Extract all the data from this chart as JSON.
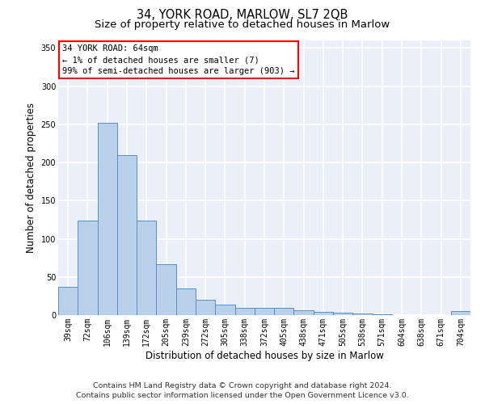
{
  "title_line1": "34, YORK ROAD, MARLOW, SL7 2QB",
  "title_line2": "Size of property relative to detached houses in Marlow",
  "xlabel": "Distribution of detached houses by size in Marlow",
  "ylabel": "Number of detached properties",
  "bar_labels": [
    "39sqm",
    "72sqm",
    "106sqm",
    "139sqm",
    "172sqm",
    "205sqm",
    "239sqm",
    "272sqm",
    "305sqm",
    "338sqm",
    "372sqm",
    "405sqm",
    "438sqm",
    "471sqm",
    "505sqm",
    "538sqm",
    "571sqm",
    "604sqm",
    "638sqm",
    "671sqm",
    "704sqm"
  ],
  "bar_values": [
    37,
    124,
    252,
    210,
    124,
    67,
    35,
    20,
    14,
    10,
    10,
    10,
    6,
    4,
    3,
    2,
    1,
    0,
    0,
    0,
    5
  ],
  "bar_color": "#b8d0ea",
  "bar_edge_color": "#5a8fc2",
  "ylim": [
    0,
    360
  ],
  "yticks": [
    0,
    50,
    100,
    150,
    200,
    250,
    300,
    350
  ],
  "annotation_box_text": "34 YORK ROAD: 64sqm\n← 1% of detached houses are smaller (7)\n99% of semi-detached houses are larger (903) →",
  "footer_line1": "Contains HM Land Registry data © Crown copyright and database right 2024.",
  "footer_line2": "Contains public sector information licensed under the Open Government Licence v3.0.",
  "plot_bg_color": "#eaeff8",
  "grid_color": "#ffffff",
  "title_fontsize": 10.5,
  "subtitle_fontsize": 9.5,
  "ylabel_fontsize": 8.5,
  "xlabel_fontsize": 8.5,
  "tick_fontsize": 7.0,
  "annotation_fontsize": 7.5,
  "footer_fontsize": 6.8
}
